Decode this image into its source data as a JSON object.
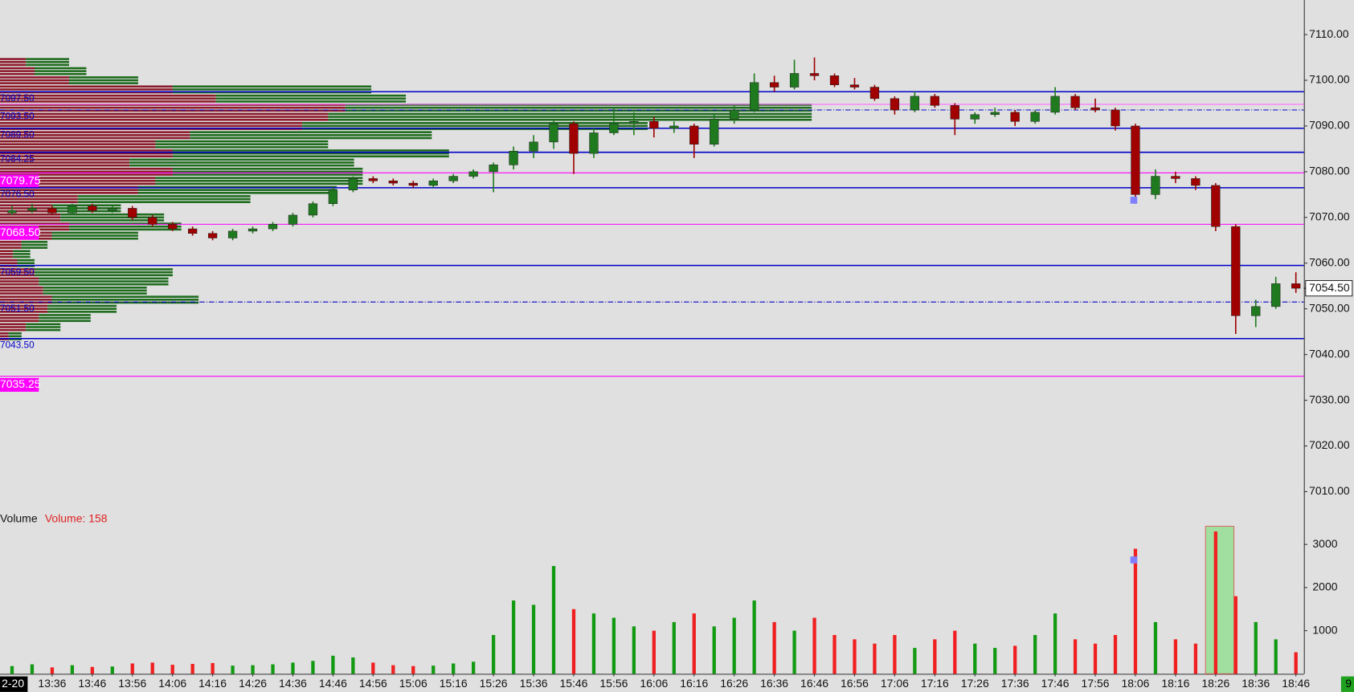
{
  "chart_data": {
    "type": "candlestick",
    "up_color": "#1f7a1f",
    "down_color": "#a00000",
    "xlim": [
      "13:23",
      "18:48"
    ],
    "xticks": [
      "13:36",
      "13:46",
      "13:56",
      "14:06",
      "14:16",
      "14:26",
      "14:36",
      "14:46",
      "14:56",
      "15:06",
      "15:16",
      "15:26",
      "15:36",
      "15:46",
      "15:56",
      "16:06",
      "16:16",
      "16:26",
      "16:36",
      "16:46",
      "16:56",
      "17:06",
      "17:16",
      "17:26",
      "17:36",
      "17:46",
      "17:56",
      "18:06",
      "18:16",
      "18:26",
      "18:36",
      "18:46"
    ],
    "date_label": "2-20",
    "ylim": [
      7006.2,
      7117.55
    ],
    "yticks": [
      {
        "value": 7110,
        "label": "7110.00"
      },
      {
        "value": 7100,
        "label": "7100.00"
      },
      {
        "value": 7090,
        "label": "7090.00"
      },
      {
        "value": 7080,
        "label": "7080.00"
      },
      {
        "value": 7070,
        "label": "7070.00"
      },
      {
        "value": 7060,
        "label": "7060.00"
      },
      {
        "value": 7050,
        "label": "7050.00"
      },
      {
        "value": 7040,
        "label": "7040.00"
      },
      {
        "value": 7030,
        "label": "7030.00"
      },
      {
        "value": 7020,
        "label": "7020.00"
      },
      {
        "value": 7010,
        "label": "7010.00"
      }
    ],
    "last": {
      "value": 7054.5,
      "label": "7054.50"
    },
    "x": [
      "13:26",
      "13:31",
      "13:36",
      "13:41",
      "13:46",
      "13:51",
      "13:56",
      "14:01",
      "14:06",
      "14:11",
      "14:16",
      "14:21",
      "14:26",
      "14:31",
      "14:36",
      "14:41",
      "14:46",
      "14:51",
      "14:56",
      "15:01",
      "15:06",
      "15:11",
      "15:16",
      "15:21",
      "15:26",
      "15:31",
      "15:36",
      "15:41",
      "15:46",
      "15:51",
      "15:56",
      "16:01",
      "16:06",
      "16:11",
      "16:16",
      "16:21",
      "16:26",
      "16:31",
      "16:36",
      "16:41",
      "16:46",
      "16:51",
      "16:56",
      "17:01",
      "17:06",
      "17:11",
      "17:16",
      "17:21",
      "17:26",
      "17:31",
      "17:36",
      "17:41",
      "17:46",
      "17:51",
      "17:56",
      "18:01",
      "18:06",
      "18:11",
      "18:16",
      "18:21",
      "18:26",
      "18:31",
      "18:36",
      "18:41",
      "18:46"
    ],
    "ohlc": [
      [
        7071,
        7072.5,
        7070.5,
        7071.5
      ],
      [
        7071.5,
        7073,
        7071,
        7072
      ],
      [
        7072,
        7072.5,
        7070.5,
        7071
      ],
      [
        7071,
        7073,
        7070.5,
        7072.5
      ],
      [
        7072.5,
        7073,
        7071,
        7071.5
      ],
      [
        7071.5,
        7072.5,
        7071,
        7072
      ],
      [
        7072,
        7072.5,
        7069.5,
        7070
      ],
      [
        7070,
        7070.5,
        7068,
        7068.5
      ],
      [
        7068.5,
        7069,
        7067,
        7067.5
      ],
      [
        7067.5,
        7068,
        7066,
        7066.5
      ],
      [
        7066.5,
        7067,
        7065,
        7065.5
      ],
      [
        7065.5,
        7067.5,
        7065,
        7067
      ],
      [
        7067,
        7068,
        7066.5,
        7067.5
      ],
      [
        7067.5,
        7069,
        7067,
        7068.5
      ],
      [
        7068.5,
        7071,
        7068,
        7070.5
      ],
      [
        7070.5,
        7073.5,
        7070,
        7073
      ],
      [
        7073,
        7076.5,
        7072.5,
        7076
      ],
      [
        7076,
        7079,
        7075.5,
        7078.5
      ],
      [
        7078.5,
        7079,
        7077.5,
        7078
      ],
      [
        7078,
        7078.5,
        7077,
        7077.5
      ],
      [
        7077.5,
        7078,
        7076.5,
        7077
      ],
      [
        7077,
        7078.5,
        7076.5,
        7078
      ],
      [
        7078,
        7079.5,
        7077.5,
        7079
      ],
      [
        7079,
        7080.5,
        7078.5,
        7080
      ],
      [
        7080,
        7082,
        7075.5,
        7081.5
      ],
      [
        7081.5,
        7085.5,
        7080.5,
        7084.5
      ],
      [
        7084.5,
        7088,
        7083,
        7086.5
      ],
      [
        7086.5,
        7091.5,
        7085,
        7090.5
      ],
      [
        7090.5,
        7091,
        7079.5,
        7084
      ],
      [
        7084,
        7089.5,
        7083,
        7088.5
      ],
      [
        7088.5,
        7094,
        7088,
        7090.5
      ],
      [
        7090.5,
        7093,
        7088,
        7091
      ],
      [
        7091,
        7092,
        7087.5,
        7089.5
      ],
      [
        7089.5,
        7091,
        7088.5,
        7090
      ],
      [
        7090,
        7090.5,
        7083,
        7086
      ],
      [
        7086,
        7092.5,
        7085.5,
        7091.5
      ],
      [
        7091.5,
        7094.5,
        7090.5,
        7093.5
      ],
      [
        7093.5,
        7101.5,
        7093,
        7099.5
      ],
      [
        7099.5,
        7101,
        7097.5,
        7098.5
      ],
      [
        7098.5,
        7104.5,
        7098,
        7101.5
      ],
      [
        7101.5,
        7105,
        7100,
        7101
      ],
      [
        7101,
        7101.5,
        7098.5,
        7099
      ],
      [
        7099,
        7100.5,
        7098,
        7098.5
      ],
      [
        7098.5,
        7099,
        7095.5,
        7096
      ],
      [
        7096,
        7096.5,
        7092.5,
        7093.5
      ],
      [
        7093.5,
        7097.5,
        7093,
        7096.5
      ],
      [
        7096.5,
        7097,
        7094,
        7094.5
      ],
      [
        7094.5,
        7095,
        7088,
        7091.5
      ],
      [
        7091.5,
        7093,
        7090.5,
        7092.5
      ],
      [
        7092.5,
        7094,
        7092,
        7093
      ],
      [
        7093,
        7093.5,
        7090,
        7091
      ],
      [
        7091,
        7093.5,
        7090.5,
        7093
      ],
      [
        7093,
        7098.5,
        7092.5,
        7096.5
      ],
      [
        7096.5,
        7097,
        7093.5,
        7094
      ],
      [
        7094,
        7096,
        7093,
        7093.5
      ],
      [
        7093.5,
        7094,
        7089,
        7090
      ],
      [
        7090,
        7090.5,
        7073,
        7075
      ],
      [
        7075,
        7080.5,
        7074,
        7079
      ],
      [
        7079,
        7080,
        7077.5,
        7078.5
      ],
      [
        7078.5,
        7079,
        7076,
        7077
      ],
      [
        7077,
        7077.5,
        7067,
        7068
      ],
      [
        7068,
        7068.5,
        7044.5,
        7048.5
      ],
      [
        7048.5,
        7052,
        7046,
        7050.5
      ],
      [
        7050.5,
        7057,
        7050,
        7055.5
      ],
      [
        7055.5,
        7058,
        7053.5,
        7054.5
      ]
    ],
    "levels": [
      {
        "value": 7097.5,
        "label": "7097.50",
        "style": "solid",
        "color": "#0000c8"
      },
      {
        "value": 7094.75,
        "style": "solid",
        "color": "#ff66ff"
      },
      {
        "value": 7093.5,
        "label": "7093.50",
        "style": "dashdot",
        "color": "#0000c8"
      },
      {
        "value": 7089.5,
        "label": "7089.50",
        "style": "solid",
        "color": "#0000c8"
      },
      {
        "value": 7084.25,
        "label": "7084.25",
        "style": "solid",
        "color": "#0000c8"
      },
      {
        "value": 7079.75,
        "label": "7079.75",
        "style": "highlight",
        "color": "#ff00ff"
      },
      {
        "value": 7076.5,
        "label": "7076.50",
        "style": "solid",
        "color": "#0000c8"
      },
      {
        "value": 7068.5,
        "label": "7068.50",
        "style": "highlight",
        "color": "#ff00ff"
      },
      {
        "value": 7059.5,
        "label": "7059.50",
        "style": "solid",
        "color": "#0000c8"
      },
      {
        "value": 7051.5,
        "label": "7051.50",
        "style": "dashdot",
        "color": "#0000c8"
      },
      {
        "value": 7043.5,
        "label": "7043.50",
        "style": "solid",
        "color": "#0000c8"
      },
      {
        "value": 7035.25,
        "label": "7035.25",
        "style": "highlight",
        "color": "#ff00ff"
      }
    ],
    "profile": {
      "sell_color": "#8b1a2a",
      "buy_color": "#1e6b1e",
      "prices": [
        7044,
        7046,
        7048,
        7050,
        7052,
        7054,
        7056,
        7058,
        7060,
        7062,
        7064,
        7066,
        7068,
        7070,
        7072,
        7074,
        7076,
        7078,
        7080,
        7082,
        7084,
        7086,
        7088,
        7090,
        7092,
        7094,
        7096,
        7098,
        7100,
        7102,
        7104
      ],
      "sell": [
        10,
        30,
        45,
        55,
        60,
        50,
        45,
        40,
        20,
        15,
        25,
        60,
        80,
        70,
        60,
        90,
        160,
        180,
        200,
        150,
        200,
        180,
        220,
        350,
        380,
        400,
        250,
        200,
        80,
        40,
        30
      ],
      "buy": [
        15,
        40,
        60,
        80,
        170,
        120,
        150,
        160,
        20,
        20,
        30,
        100,
        130,
        120,
        80,
        200,
        230,
        240,
        220,
        260,
        320,
        200,
        280,
        400,
        560,
        540,
        220,
        230,
        80,
        60,
        50
      ]
    },
    "volume": {
      "title": "Volume",
      "readout": "Volume: 158",
      "up_color": "#139a13",
      "down_color": "#f02020",
      "ylim": [
        0,
        3820
      ],
      "yticks": [
        1000,
        2000,
        3000
      ],
      "values": [
        180,
        220,
        150,
        200,
        160,
        170,
        240,
        260,
        210,
        230,
        250,
        190,
        200,
        220,
        260,
        300,
        420,
        380,
        260,
        200,
        180,
        190,
        240,
        280,
        900,
        1700,
        1600,
        2500,
        1500,
        1400,
        1300,
        1100,
        1000,
        1200,
        1400,
        1100,
        1300,
        1700,
        1200,
        1000,
        1300,
        900,
        800,
        700,
        900,
        600,
        800,
        1000,
        700,
        600,
        650,
        900,
        1400,
        800,
        700,
        900,
        2900,
        1200,
        800,
        700,
        3300,
        1800,
        1200,
        800,
        500
      ]
    },
    "status": "9"
  }
}
